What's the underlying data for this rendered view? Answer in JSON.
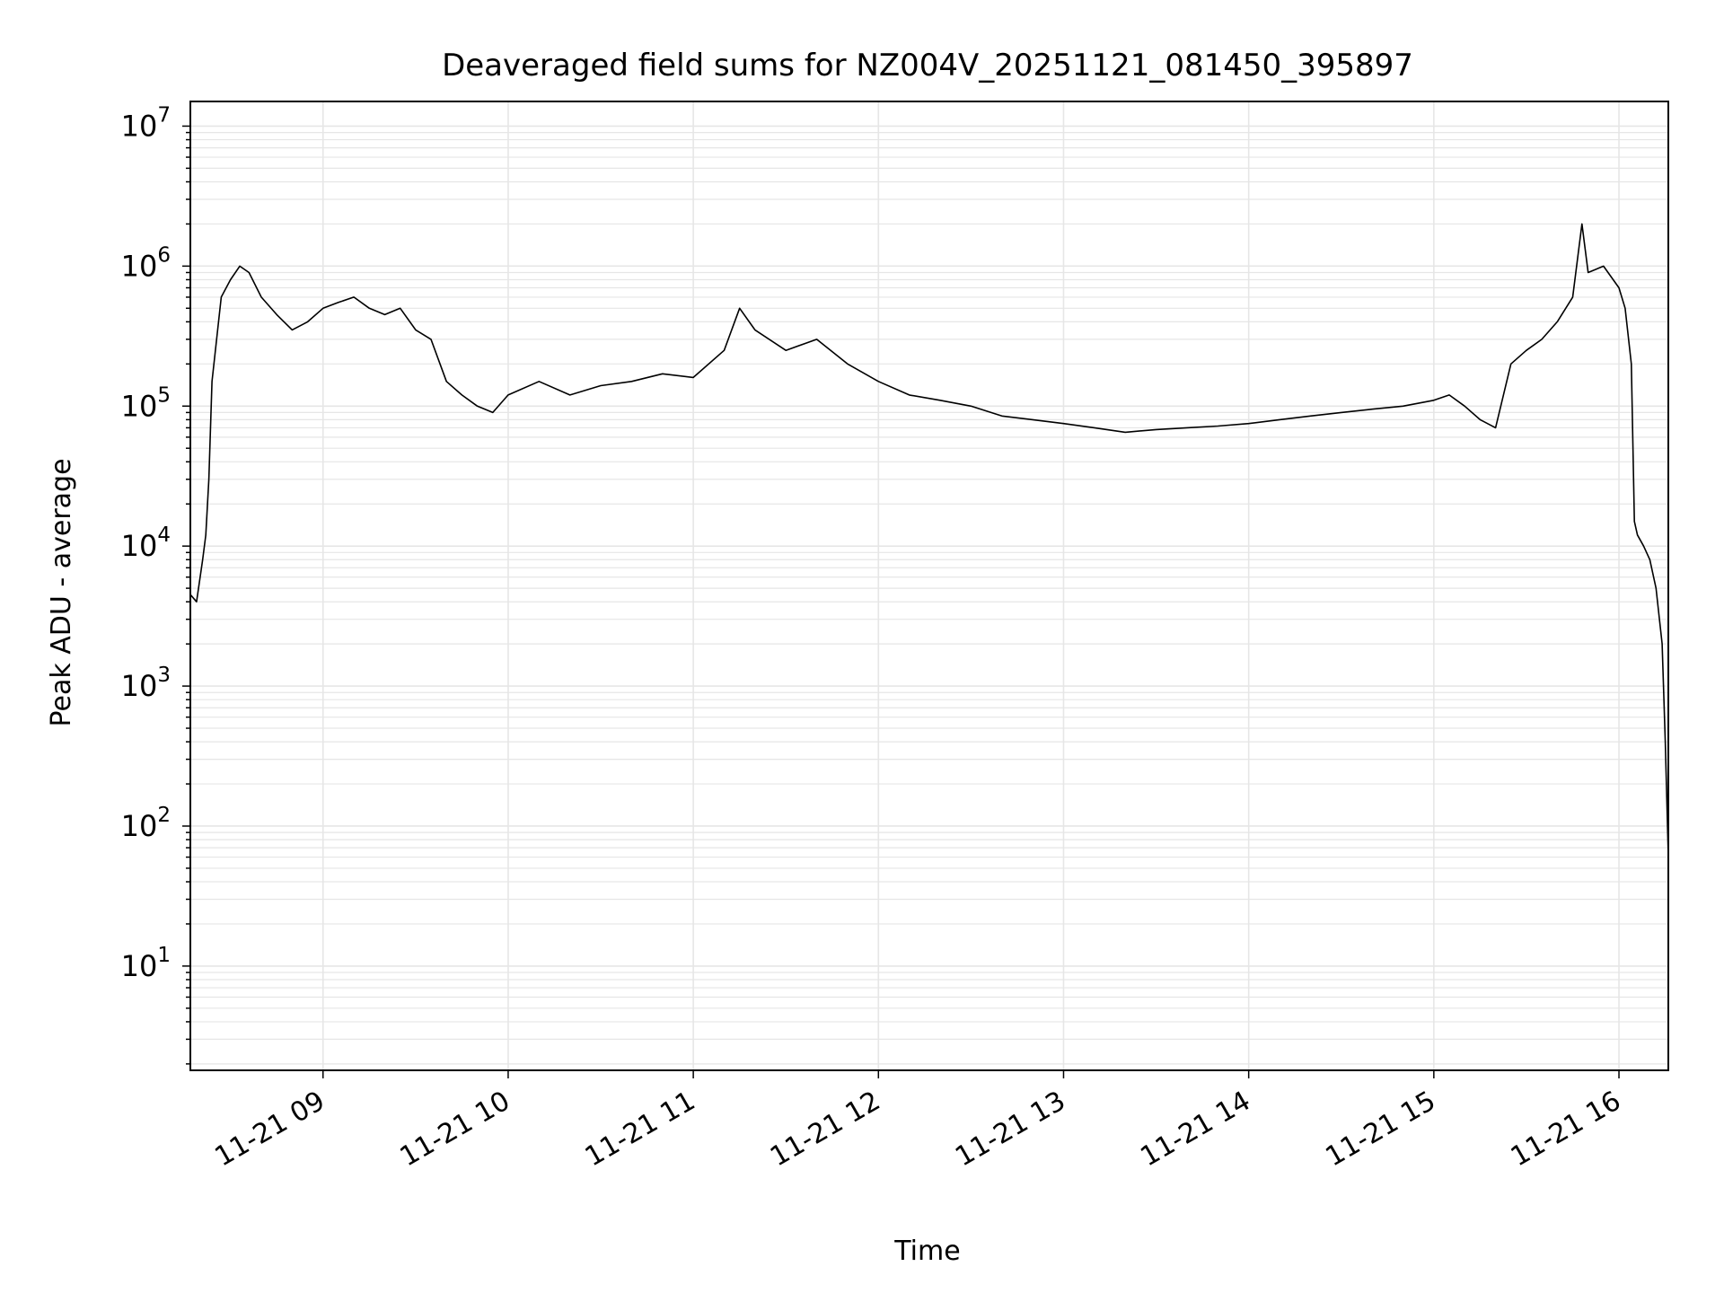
{
  "chart_data": {
    "type": "line",
    "title": "Deaveraged field sums for NZ004V_20251121_081450_395897",
    "xlabel": "Time",
    "ylabel": "Peak ADU - average",
    "yscale": "log",
    "ylim": [
      1.8,
      15000000
    ],
    "xlim": [
      "2025-11-21 08:17",
      "2025-11-21 16:16"
    ],
    "grid": true,
    "line_color": "#000000",
    "grid_color": "#e6e6e6",
    "x_ticks": [
      {
        "value": "2025-11-21 09:00",
        "label": "11-21 09"
      },
      {
        "value": "2025-11-21 10:00",
        "label": "11-21 10"
      },
      {
        "value": "2025-11-21 11:00",
        "label": "11-21 11"
      },
      {
        "value": "2025-11-21 12:00",
        "label": "11-21 12"
      },
      {
        "value": "2025-11-21 13:00",
        "label": "11-21 13"
      },
      {
        "value": "2025-11-21 14:00",
        "label": "11-21 14"
      },
      {
        "value": "2025-11-21 15:00",
        "label": "11-21 15"
      },
      {
        "value": "2025-11-21 16:00",
        "label": "11-21 16"
      }
    ],
    "y_ticks": [
      {
        "value": 10,
        "label": "10",
        "exp": "1"
      },
      {
        "value": 100,
        "label": "10",
        "exp": "2"
      },
      {
        "value": 1000,
        "label": "10",
        "exp": "3"
      },
      {
        "value": 10000,
        "label": "10",
        "exp": "4"
      },
      {
        "value": 100000,
        "label": "10",
        "exp": "5"
      },
      {
        "value": 1000000,
        "label": "10",
        "exp": "6"
      },
      {
        "value": 10000000,
        "label": "10",
        "exp": "7"
      }
    ],
    "series": [
      {
        "x": [
          "2025-11-21 08:17",
          "2025-11-21 08:19",
          "2025-11-21 08:21",
          "2025-11-21 08:22",
          "2025-11-21 08:23",
          "2025-11-21 08:24",
          "2025-11-21 08:27",
          "2025-11-21 08:30",
          "2025-11-21 08:33",
          "2025-11-21 08:36",
          "2025-11-21 08:40",
          "2025-11-21 08:45",
          "2025-11-21 08:50",
          "2025-11-21 08:55",
          "2025-11-21 09:00",
          "2025-11-21 09:05",
          "2025-11-21 09:10",
          "2025-11-21 09:15",
          "2025-11-21 09:20",
          "2025-11-21 09:25",
          "2025-11-21 09:30",
          "2025-11-21 09:35",
          "2025-11-21 09:40",
          "2025-11-21 09:45",
          "2025-11-21 09:50",
          "2025-11-21 09:55",
          "2025-11-21 10:00",
          "2025-11-21 10:10",
          "2025-11-21 10:20",
          "2025-11-21 10:30",
          "2025-11-21 10:40",
          "2025-11-21 10:50",
          "2025-11-21 11:00",
          "2025-11-21 11:10",
          "2025-11-21 11:15",
          "2025-11-21 11:20",
          "2025-11-21 11:30",
          "2025-11-21 11:40",
          "2025-11-21 11:50",
          "2025-11-21 12:00",
          "2025-11-21 12:10",
          "2025-11-21 12:20",
          "2025-11-21 12:30",
          "2025-11-21 12:40",
          "2025-11-21 12:50",
          "2025-11-21 13:00",
          "2025-11-21 13:10",
          "2025-11-21 13:20",
          "2025-11-21 13:30",
          "2025-11-21 13:40",
          "2025-11-21 13:50",
          "2025-11-21 14:00",
          "2025-11-21 14:10",
          "2025-11-21 14:20",
          "2025-11-21 14:30",
          "2025-11-21 14:40",
          "2025-11-21 14:50",
          "2025-11-21 15:00",
          "2025-11-21 15:05",
          "2025-11-21 15:10",
          "2025-11-21 15:15",
          "2025-11-21 15:20",
          "2025-11-21 15:25",
          "2025-11-21 15:30",
          "2025-11-21 15:35",
          "2025-11-21 15:40",
          "2025-11-21 15:45",
          "2025-11-21 15:48",
          "2025-11-21 15:50",
          "2025-11-21 15:55",
          "2025-11-21 16:00",
          "2025-11-21 16:02",
          "2025-11-21 16:04",
          "2025-11-21 16:05",
          "2025-11-21 16:06",
          "2025-11-21 16:08",
          "2025-11-21 16:10",
          "2025-11-21 16:12",
          "2025-11-21 16:14",
          "2025-11-21 16:15",
          "2025-11-21 16:16"
        ],
        "y": [
          4500,
          4000,
          8000,
          12000,
          30000,
          150000,
          600000,
          800000,
          1000000,
          900000,
          600000,
          450000,
          350000,
          400000,
          500000,
          550000,
          600000,
          500000,
          450000,
          500000,
          350000,
          300000,
          150000,
          120000,
          100000,
          90000,
          120000,
          150000,
          120000,
          140000,
          150000,
          170000,
          160000,
          250000,
          500000,
          350000,
          250000,
          300000,
          200000,
          150000,
          120000,
          110000,
          100000,
          85000,
          80000,
          75000,
          70000,
          65000,
          68000,
          70000,
          72000,
          75000,
          80000,
          85000,
          90000,
          95000,
          100000,
          110000,
          120000,
          100000,
          80000,
          70000,
          200000,
          250000,
          300000,
          400000,
          600000,
          2000000,
          900000,
          1000000,
          700000,
          500000,
          200000,
          15000,
          12000,
          10000,
          8000,
          5000,
          2000,
          400,
          60
        ]
      }
    ]
  }
}
